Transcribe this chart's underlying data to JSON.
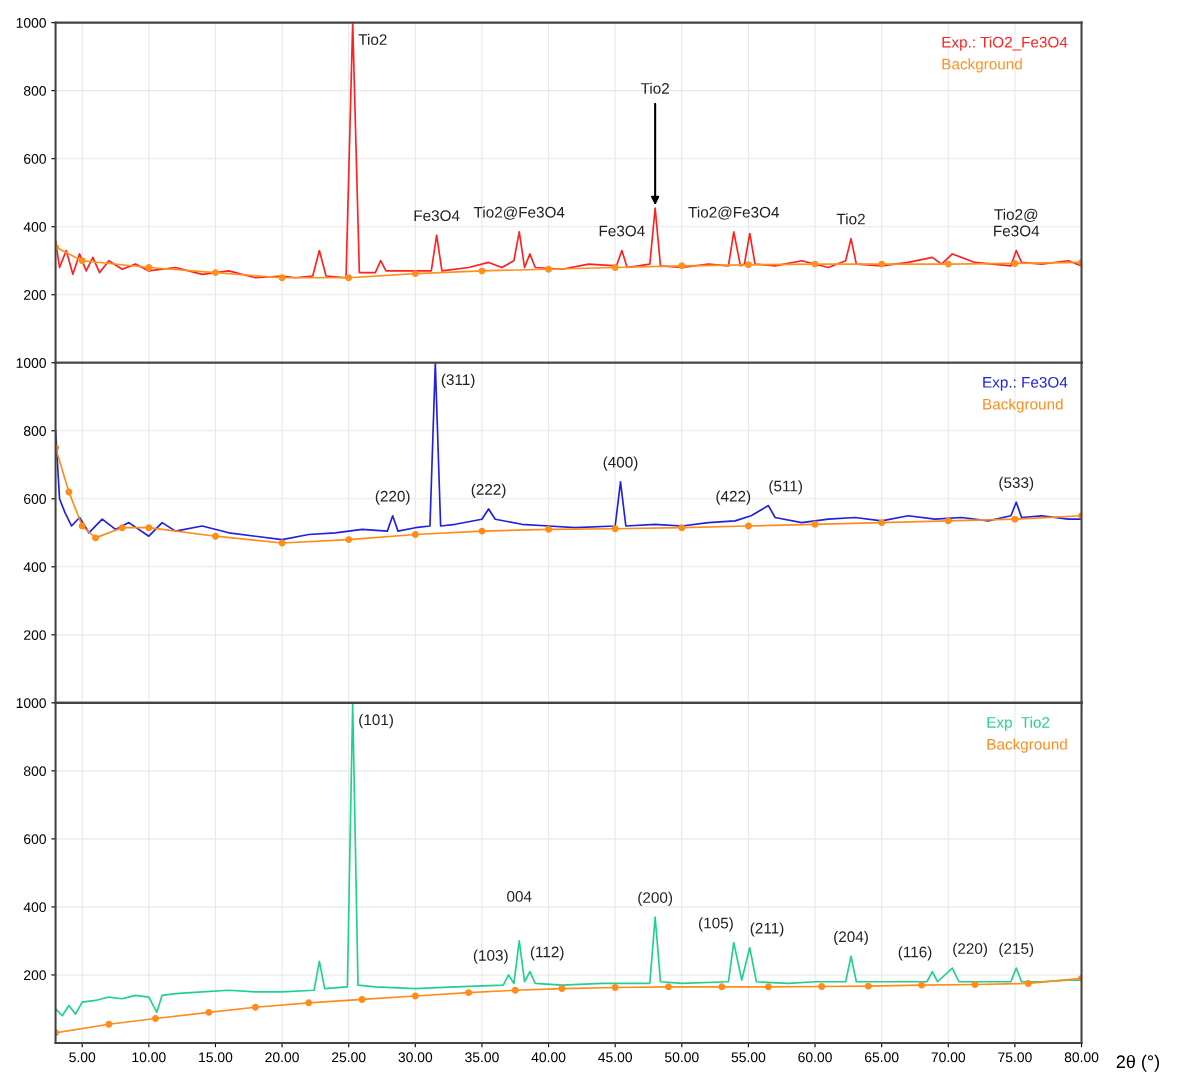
{
  "chart_data": [
    {
      "type": "line",
      "legend": "top right",
      "grid": true,
      "tick_labels": "y",
      "xlim": [
        3,
        80
      ],
      "ylim": [
        0,
        1000
      ],
      "xticks": [
        5,
        10,
        15,
        20,
        25,
        30,
        35,
        40,
        45,
        50,
        55,
        60,
        65,
        70,
        75,
        80
      ],
      "yticks": [
        200,
        400,
        600,
        800,
        1000
      ],
      "series": [
        {
          "name": "Exp.: TiO2_Fe3O4",
          "color": "#ff2020",
          "marker": "none",
          "x": [
            3,
            3.3,
            3.8,
            4.3,
            4.8,
            5.3,
            5.8,
            6.3,
            7,
            8,
            9,
            10,
            12,
            14,
            16,
            18,
            20,
            21,
            22.3,
            22.8,
            23.3,
            24.8,
            25.3,
            25.8,
            27,
            27.4,
            27.8,
            29,
            31.2,
            31.6,
            32,
            34,
            35.5,
            36.5,
            37.4,
            37.8,
            38.2,
            38.6,
            39,
            41,
            43,
            45.1,
            45.5,
            45.9,
            47.6,
            48,
            48.4,
            50,
            52,
            53.5,
            53.9,
            54.4,
            54.7,
            55.1,
            55.5,
            57,
            59,
            61,
            62.3,
            62.7,
            63.1,
            65,
            67,
            68.8,
            69.5,
            70.3,
            72,
            74.7,
            75.1,
            75.5,
            77,
            79,
            80
          ],
          "values": [
            360,
            280,
            330,
            260,
            320,
            270,
            310,
            265,
            300,
            275,
            290,
            270,
            280,
            260,
            270,
            250,
            255,
            250,
            255,
            330,
            255,
            250,
            1000,
            265,
            265,
            300,
            270,
            270,
            270,
            375,
            270,
            280,
            295,
            280,
            300,
            385,
            280,
            320,
            280,
            275,
            290,
            285,
            330,
            280,
            290,
            455,
            285,
            280,
            290,
            285,
            385,
            285,
            290,
            380,
            290,
            285,
            300,
            280,
            300,
            365,
            290,
            285,
            295,
            310,
            290,
            320,
            295,
            285,
            330,
            295,
            290,
            300,
            285
          ]
        },
        {
          "name": "Background",
          "color": "#ff9020",
          "marker": "circle",
          "x": [
            3,
            5,
            10,
            15,
            20,
            25,
            30,
            35,
            40,
            45,
            50,
            55,
            60,
            65,
            70,
            75,
            80
          ],
          "values": [
            340,
            300,
            280,
            265,
            250,
            250,
            262,
            270,
            275,
            280,
            285,
            288,
            290,
            290,
            290,
            292,
            295
          ]
        }
      ],
      "annotations": [
        {
          "text": "Tio2",
          "x": 25.3,
          "y": 1000
        },
        {
          "text": "Fe3O4",
          "x": 31.6,
          "y": 375
        },
        {
          "text": "Tio2@Fe3O4",
          "x": 37.8,
          "y": 385
        },
        {
          "text": "Fe3O4",
          "x": 45.5,
          "y": 330
        },
        {
          "text": "Tio2",
          "x": 48,
          "y": 455
        },
        {
          "text": "Tio2@Fe3O4",
          "x": 53.9,
          "y": 385
        },
        {
          "text": "Tio2",
          "x": 62.7,
          "y": 365
        },
        {
          "text": "Tio2@\nFe3O4",
          "x": 75.1,
          "y": 330
        }
      ]
    },
    {
      "type": "line",
      "legend": "top right",
      "grid": true,
      "tick_labels": "y",
      "xlim": [
        3,
        80
      ],
      "ylim": [
        0,
        1000
      ],
      "xticks": [
        5,
        10,
        15,
        20,
        25,
        30,
        35,
        40,
        45,
        50,
        55,
        60,
        65,
        70,
        75,
        80
      ],
      "yticks": [
        200,
        400,
        600,
        800,
        1000
      ],
      "series": [
        {
          "name": "Exp.: Fe3O4",
          "color": "#2020e0",
          "marker": "none",
          "x": [
            3,
            3.3,
            3.7,
            4.2,
            4.8,
            5.5,
            6.5,
            7.5,
            8.5,
            10,
            11,
            12,
            14,
            16,
            18,
            20,
            22,
            24,
            26,
            27.9,
            28.3,
            28.7,
            30,
            31.1,
            31.5,
            31.9,
            33,
            35,
            35.5,
            36,
            38,
            40,
            42,
            45,
            45.4,
            45.8,
            48,
            50,
            52,
            54,
            55.2,
            56.5,
            57,
            59,
            61,
            63,
            65,
            67,
            69,
            71,
            73,
            74.7,
            75.1,
            75.5,
            77,
            79,
            80
          ],
          "values": [
            800,
            600,
            560,
            520,
            545,
            500,
            540,
            510,
            530,
            490,
            530,
            505,
            520,
            500,
            490,
            480,
            495,
            500,
            510,
            505,
            550,
            505,
            515,
            520,
            1000,
            520,
            525,
            540,
            570,
            540,
            525,
            520,
            515,
            520,
            650,
            520,
            525,
            520,
            530,
            535,
            550,
            580,
            545,
            530,
            540,
            545,
            535,
            550,
            540,
            545,
            535,
            550,
            590,
            545,
            550,
            540,
            540
          ]
        },
        {
          "name": "Background",
          "color": "#ff8c1a",
          "marker": "circle",
          "x": [
            3,
            4,
            5,
            6,
            8,
            10,
            15,
            20,
            25,
            30,
            35,
            40,
            45,
            50,
            55,
            60,
            65,
            70,
            75,
            80
          ],
          "values": [
            750,
            620,
            520,
            485,
            515,
            515,
            490,
            470,
            480,
            495,
            505,
            510,
            512,
            515,
            520,
            525,
            530,
            535,
            540,
            550
          ]
        }
      ],
      "annotations": [
        {
          "text": "(220)",
          "x": 28.3,
          "y": 550
        },
        {
          "text": "(311)",
          "x": 31.5,
          "y": 1000
        },
        {
          "text": "(222)",
          "x": 35.5,
          "y": 570
        },
        {
          "text": "(400)",
          "x": 45.4,
          "y": 650
        },
        {
          "text": "(422)",
          "x": 55.2,
          "y": 550
        },
        {
          "text": "(511)",
          "x": 56.5,
          "y": 580
        },
        {
          "text": "(533)",
          "x": 75.1,
          "y": 590
        }
      ]
    },
    {
      "type": "line",
      "legend": "top right",
      "grid": true,
      "xlim": [
        3,
        80
      ],
      "ylim": [
        0,
        1000
      ],
      "xlabel": "2θ (°)",
      "xticks": [
        {
          "value": 5,
          "label": "5.00"
        },
        {
          "value": 10,
          "label": "10.00"
        },
        {
          "value": 15,
          "label": "15.00"
        },
        {
          "value": 20,
          "label": "20.00"
        },
        {
          "value": 25,
          "label": "25.00"
        },
        {
          "value": 30,
          "label": "30.00"
        },
        {
          "value": 35,
          "label": "35.00"
        },
        {
          "value": 40,
          "label": "40.00"
        },
        {
          "value": 45,
          "label": "45.00"
        },
        {
          "value": 50,
          "label": "50.00"
        },
        {
          "value": 55,
          "label": "55.00"
        },
        {
          "value": 60,
          "label": "60.00"
        },
        {
          "value": 65,
          "label": "65.00"
        },
        {
          "value": 70,
          "label": "70.00"
        },
        {
          "value": 75,
          "label": "75.00"
        },
        {
          "value": 80,
          "label": "80.00"
        }
      ],
      "yticks": [
        200,
        400,
        600,
        800,
        1000
      ],
      "series": [
        {
          "name": "Exp  Tio2",
          "color": "#20d090",
          "marker": "none",
          "x": [
            3,
            3.5,
            4,
            4.5,
            5,
            6,
            7,
            8,
            9,
            10,
            10.6,
            11,
            12,
            14,
            16,
            18,
            20,
            22.4,
            22.8,
            23.2,
            24.9,
            25.3,
            25.7,
            27,
            30,
            33,
            36.6,
            37,
            37.4,
            37.8,
            38.2,
            38.6,
            39,
            41,
            44,
            47.6,
            48,
            48.4,
            50,
            53.5,
            53.9,
            54.5,
            55.1,
            55.6,
            58,
            60,
            62.3,
            62.7,
            63.1,
            65,
            68.4,
            68.8,
            69.2,
            70.3,
            70.8,
            72,
            74.7,
            75.1,
            75.5,
            77,
            79,
            80
          ],
          "values": [
            100,
            80,
            110,
            85,
            120,
            125,
            135,
            130,
            140,
            135,
            90,
            140,
            145,
            150,
            155,
            150,
            150,
            155,
            240,
            160,
            165,
            1000,
            170,
            165,
            160,
            165,
            170,
            200,
            175,
            300,
            180,
            210,
            175,
            170,
            175,
            175,
            370,
            180,
            175,
            180,
            295,
            185,
            280,
            180,
            175,
            180,
            180,
            255,
            180,
            180,
            180,
            210,
            180,
            220,
            180,
            180,
            180,
            220,
            180,
            180,
            185,
            185
          ]
        },
        {
          "name": "Background",
          "color": "#ff8c1a",
          "marker": "circle",
          "x": [
            3,
            7,
            10.5,
            14.5,
            18,
            22,
            26,
            30,
            34,
            37.5,
            41,
            45,
            49,
            53,
            56.5,
            60.5,
            64,
            68,
            72,
            76,
            80
          ],
          "values": [
            30,
            55,
            72,
            90,
            105,
            118,
            128,
            138,
            148,
            155,
            160,
            163,
            165,
            165,
            165,
            166,
            167,
            170,
            172,
            175,
            190
          ]
        }
      ],
      "annotations": [
        {
          "text": "(101)",
          "x": 25.3,
          "y": 1000
        },
        {
          "text": "004",
          "x": 37.8,
          "y": 300
        },
        {
          "text": "(103)",
          "x": 37,
          "y": 200
        },
        {
          "text": "(112)",
          "x": 38.6,
          "y": 210
        },
        {
          "text": "(200)",
          "x": 48,
          "y": 370
        },
        {
          "text": "(105)",
          "x": 53.9,
          "y": 295
        },
        {
          "text": "(211)",
          "x": 55.1,
          "y": 280
        },
        {
          "text": "(204)",
          "x": 62.7,
          "y": 255
        },
        {
          "text": "(116)",
          "x": 68.8,
          "y": 210
        },
        {
          "text": "(220)",
          "x": 70.3,
          "y": 220
        },
        {
          "text": "(215)",
          "x": 75.1,
          "y": 220
        }
      ]
    }
  ]
}
